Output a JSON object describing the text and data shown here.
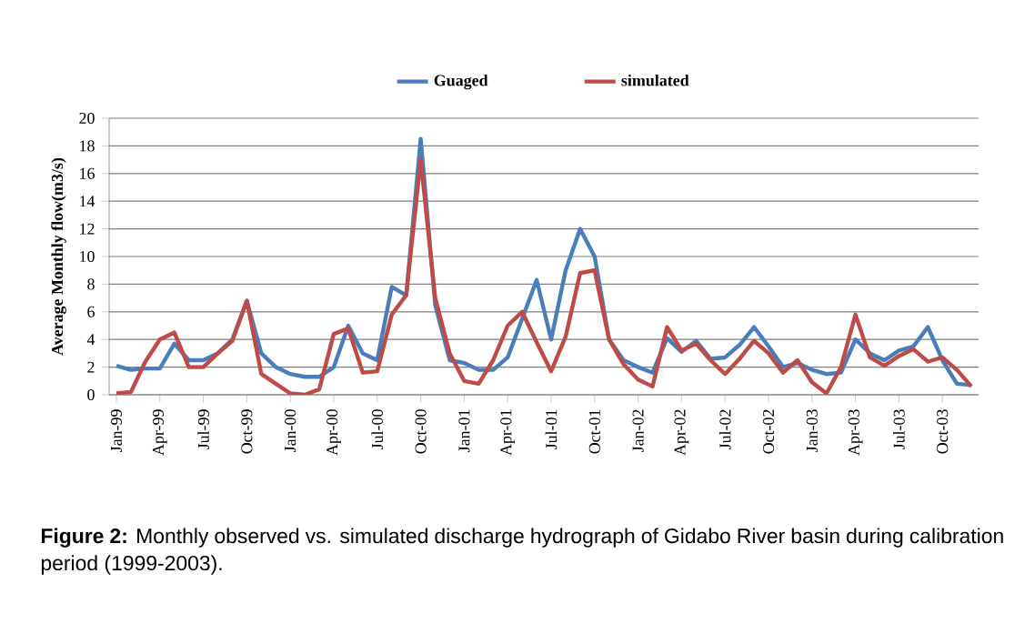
{
  "chart_data": {
    "type": "line",
    "ylabel": "Average Monthly flow(m3/s)",
    "categories": [
      "Jan-99",
      null,
      null,
      "Apr-99",
      null,
      null,
      "Jul-99",
      null,
      null,
      "Oct-99",
      null,
      null,
      "Jan-00",
      null,
      null,
      "Apr-00",
      null,
      null,
      "Jul-00",
      null,
      null,
      "Oct-00",
      null,
      null,
      "Jan-01",
      null,
      null,
      "Apr-01",
      null,
      null,
      "Jul-01",
      null,
      null,
      "Oct-01",
      null,
      null,
      "Jan-02",
      null,
      null,
      "Apr-02",
      null,
      null,
      "Jul-02",
      null,
      null,
      "Oct-02",
      null,
      null,
      "Jan-03",
      null,
      null,
      "Apr-03",
      null,
      null,
      "Jul-03",
      null,
      null,
      "Oct-03",
      null,
      null
    ],
    "series": [
      {
        "name": "Guaged",
        "color": "#4a7ebb",
        "values": [
          2.1,
          1.8,
          1.9,
          1.9,
          3.7,
          2.5,
          2.5,
          3.0,
          4.0,
          6.8,
          3.0,
          2.0,
          1.5,
          1.3,
          1.3,
          2.0,
          5.0,
          3.0,
          2.5,
          7.8,
          7.2,
          18.5,
          6.5,
          2.5,
          2.3,
          1.8,
          1.8,
          2.7,
          5.5,
          8.3,
          4.0,
          9.0,
          12.0,
          10.0,
          4.0,
          2.5,
          2.0,
          1.6,
          4.1,
          3.1,
          3.9,
          2.6,
          2.7,
          3.6,
          4.9,
          3.5,
          2.0,
          2.3,
          1.8,
          1.5,
          1.6,
          4.0,
          3.0,
          2.5,
          3.2,
          3.5,
          4.9,
          2.5,
          0.8,
          0.7
        ]
      },
      {
        "name": "simulated",
        "color": "#be4b48",
        "values": [
          0.1,
          0.2,
          2.4,
          4.0,
          4.5,
          2.0,
          2.0,
          3.0,
          3.9,
          6.8,
          1.5,
          0.8,
          0.1,
          0.0,
          0.4,
          4.4,
          4.8,
          1.6,
          1.7,
          5.8,
          7.2,
          17.0,
          7.0,
          3.0,
          1.0,
          0.8,
          2.5,
          5.0,
          6.0,
          3.8,
          1.7,
          4.2,
          8.8,
          9.0,
          4.0,
          2.2,
          1.1,
          0.6,
          4.9,
          3.2,
          3.7,
          2.5,
          1.5,
          2.6,
          3.9,
          3.0,
          1.6,
          2.5,
          0.9,
          0.1,
          2.0,
          5.8,
          2.7,
          2.1,
          2.8,
          3.3,
          2.4,
          2.7,
          1.8,
          0.6
        ]
      }
    ],
    "ylim": [
      0,
      20
    ],
    "yticks": [
      0,
      2,
      4,
      6,
      8,
      10,
      12,
      14,
      16,
      18,
      20
    ],
    "grid": "y",
    "legend": "top",
    "marker": "none",
    "line_style": "solid",
    "annotations": [
      "**Figure 2:** Monthly observed vs. simulated discharge hydrograph of Gidabo River basin during calibration period (1999-2003)."
    ]
  }
}
